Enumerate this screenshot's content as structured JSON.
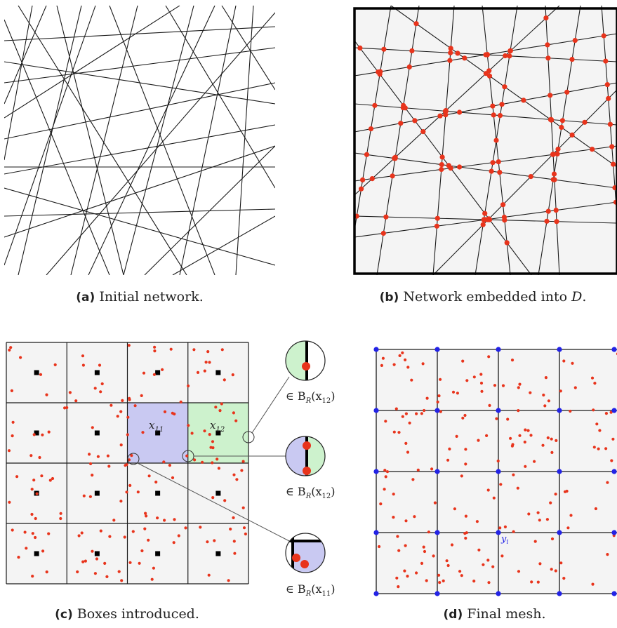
{
  "captions": {
    "a": {
      "tag": "(a)",
      "text": "Initial network."
    },
    "b": {
      "tag": "(b)",
      "text": "Network embedded into ",
      "math": "D",
      "end": "."
    },
    "c": {
      "tag": "(c)",
      "text": "Boxes introduced."
    },
    "d": {
      "tag": "(d)",
      "text": "Final mesh."
    }
  },
  "panel_c": {
    "box_label_x11": "x",
    "box_label_x11_sub": "11",
    "box_label_x12": "x",
    "box_label_x12_sub": "12",
    "zoom_labels": [
      {
        "prefix": "∈ B",
        "sub": "R",
        "arg": "(x",
        "argsub": "12",
        "close": ")"
      },
      {
        "prefix": "∈ B",
        "sub": "R",
        "arg": "(x",
        "argsub": "12",
        "close": ")"
      },
      {
        "prefix": "∈ B",
        "sub": "R",
        "arg": "(x",
        "argsub": "11",
        "close": ")"
      }
    ]
  },
  "panel_d": {
    "vertex_label": "y",
    "vertex_label_sub": "i"
  },
  "colors": {
    "line": "#1a1a1a",
    "node": "#e8341c",
    "panel_bg": "#f4f4f4",
    "box_purple": "#c9c9f2",
    "box_green": "#cdf2cd",
    "mesh_vertex": "#2323e6",
    "center_square": "#000000"
  }
}
